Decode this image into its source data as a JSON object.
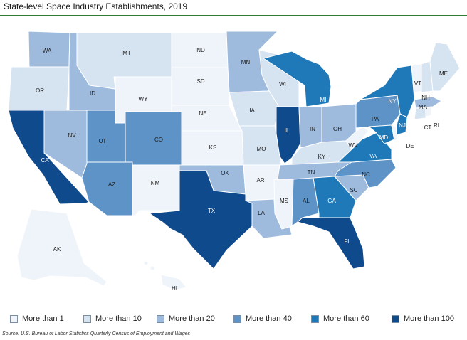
{
  "title": "State-level Space Industry Establishments, 2019",
  "source": "Source: U.S. Bureau of Labor Statistics Quarterly Census of Employment and Wages",
  "colors": {
    "c1": "#eef4fa",
    "c2": "#d6e3f1",
    "c3": "#9ebbde",
    "c4": "#5d93c7",
    "c5": "#1f78b7",
    "c6": "#0f4a8c",
    "border": "#ffffff",
    "title_rule": "#2e7d32"
  },
  "legend": [
    {
      "label": "More than 1",
      "color_key": "c1"
    },
    {
      "label": "More than 10",
      "color_key": "c2"
    },
    {
      "label": "More than 20",
      "color_key": "c3"
    },
    {
      "label": "More than 40",
      "color_key": "c4"
    },
    {
      "label": "More than 60",
      "color_key": "c5"
    },
    {
      "label": "More than 100",
      "color_key": "c6"
    }
  ],
  "states": {
    "WA": {
      "label": "WA",
      "cat": "c3"
    },
    "OR": {
      "label": "OR",
      "cat": "c2"
    },
    "CA": {
      "label": "CA",
      "cat": "c6"
    },
    "ID": {
      "label": "ID",
      "cat": "c3"
    },
    "NV": {
      "label": "NV",
      "cat": "c3"
    },
    "MT": {
      "label": "MT",
      "cat": "c2"
    },
    "WY": {
      "label": "WY",
      "cat": "c1"
    },
    "UT": {
      "label": "UT",
      "cat": "c4"
    },
    "CO": {
      "label": "CO",
      "cat": "c4"
    },
    "AZ": {
      "label": "AZ",
      "cat": "c4"
    },
    "NM": {
      "label": "NM",
      "cat": "c1"
    },
    "ND": {
      "label": "ND",
      "cat": "c1"
    },
    "SD": {
      "label": "SD",
      "cat": "c1"
    },
    "NE": {
      "label": "NE",
      "cat": "c1"
    },
    "KS": {
      "label": "KS",
      "cat": "c1"
    },
    "OK": {
      "label": "OK",
      "cat": "c3"
    },
    "TX": {
      "label": "TX",
      "cat": "c6"
    },
    "MN": {
      "label": "MN",
      "cat": "c3"
    },
    "IA": {
      "label": "IA",
      "cat": "c2"
    },
    "MO": {
      "label": "MO",
      "cat": "c2"
    },
    "AR": {
      "label": "AR",
      "cat": "c1"
    },
    "LA": {
      "label": "LA",
      "cat": "c3"
    },
    "WI": {
      "label": "WI",
      "cat": "c2"
    },
    "IL": {
      "label": "IL",
      "cat": "c6"
    },
    "MI": {
      "label": "MI",
      "cat": "c5"
    },
    "IN": {
      "label": "IN",
      "cat": "c3"
    },
    "OH": {
      "label": "OH",
      "cat": "c3"
    },
    "KY": {
      "label": "KY",
      "cat": "c2"
    },
    "TN": {
      "label": "TN",
      "cat": "c3"
    },
    "MS": {
      "label": "MS",
      "cat": "c1"
    },
    "AL": {
      "label": "AL",
      "cat": "c4"
    },
    "GA": {
      "label": "GA",
      "cat": "c5"
    },
    "FL": {
      "label": "FL",
      "cat": "c6"
    },
    "SC": {
      "label": "SC",
      "cat": "c3"
    },
    "NC": {
      "label": "NC",
      "cat": "c4"
    },
    "VA": {
      "label": "VA",
      "cat": "c5"
    },
    "WV": {
      "label": "WV",
      "cat": "c1"
    },
    "PA": {
      "label": "PA",
      "cat": "c4"
    },
    "NY": {
      "label": "NY",
      "cat": "c5"
    },
    "VT": {
      "label": "VT",
      "cat": "c1"
    },
    "NH": {
      "label": "NH",
      "cat": "c2"
    },
    "ME": {
      "label": "ME",
      "cat": "c2"
    },
    "MA": {
      "label": "MA",
      "cat": "c3"
    },
    "RI": {
      "label": "RI",
      "cat": "c1"
    },
    "CT": {
      "label": "CT",
      "cat": "c2"
    },
    "NJ": {
      "label": "NJ",
      "cat": "c5"
    },
    "DE": {
      "label": "DE",
      "cat": "c1"
    },
    "MD": {
      "label": "MD",
      "cat": "c5"
    },
    "AK": {
      "label": "AK",
      "cat": "c1"
    },
    "HI": {
      "label": "HI",
      "cat": "c1"
    }
  }
}
